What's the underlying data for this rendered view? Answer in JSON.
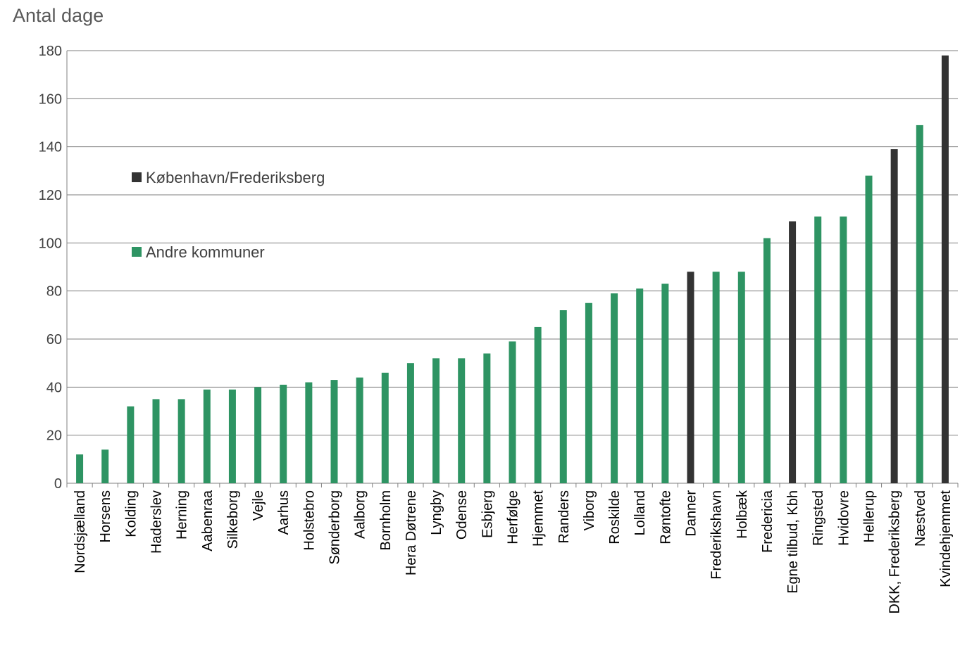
{
  "chart_data": {
    "type": "bar",
    "title": "",
    "ylabel": "Antal dage",
    "xlabel": "",
    "ylim": [
      0,
      180
    ],
    "yticks": [
      0,
      20,
      40,
      60,
      80,
      100,
      120,
      140,
      160,
      180
    ],
    "grid": true,
    "legend_position": "left",
    "colors": {
      "kbh": "#333333",
      "andre": "#2e9463"
    },
    "series": [
      {
        "key": "kbh",
        "name": "København/Frederiksberg"
      },
      {
        "key": "andre",
        "name": "Andre kommuner"
      }
    ],
    "categories": [
      "Nordsjælland",
      "Horsens",
      "Kolding",
      "Haderslev",
      "Herning",
      "Aabenraa",
      "Silkeborg",
      "Vejle",
      "Aarhus",
      "Holstebro",
      "Sønderborg",
      "Aalborg",
      "Bornholm",
      "Hera Døtrene",
      "Lyngby",
      "Odense",
      "Esbjerg",
      "Herfølge",
      "Hjemmet",
      "Randers",
      "Viborg",
      "Roskilde",
      "Lolland",
      "Røntofte",
      "Danner",
      "Frederikshavn",
      "Holbæk",
      "Fredericia",
      "Egne tilbud, Kbh",
      "Ringsted",
      "Hvidovre",
      "Hellerup",
      "DKK, Frederiksberg",
      "Næstved",
      "Kvindehjemmet"
    ],
    "values": [
      12,
      14,
      32,
      35,
      35,
      39,
      39,
      40,
      41,
      42,
      43,
      44,
      46,
      50,
      52,
      52,
      54,
      59,
      65,
      72,
      75,
      79,
      81,
      83,
      88,
      88,
      88,
      102,
      109,
      111,
      111,
      128,
      139,
      149,
      178
    ],
    "groups": [
      "andre",
      "andre",
      "andre",
      "andre",
      "andre",
      "andre",
      "andre",
      "andre",
      "andre",
      "andre",
      "andre",
      "andre",
      "andre",
      "andre",
      "andre",
      "andre",
      "andre",
      "andre",
      "andre",
      "andre",
      "andre",
      "andre",
      "andre",
      "andre",
      "kbh",
      "andre",
      "andre",
      "andre",
      "kbh",
      "andre",
      "andre",
      "andre",
      "kbh",
      "andre",
      "kbh"
    ]
  }
}
